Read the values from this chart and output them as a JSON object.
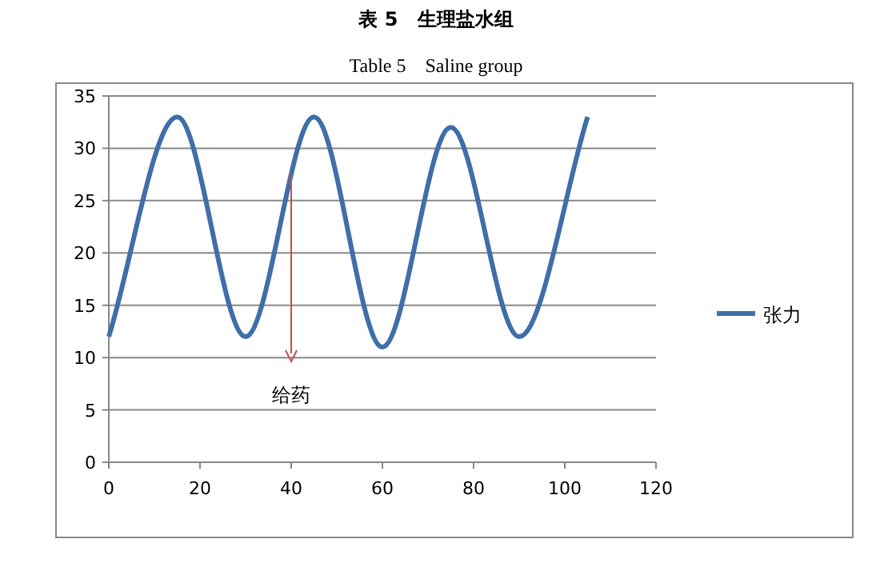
{
  "chart_data": {
    "type": "line",
    "title": "表 5　生理盐水组",
    "subtitle": "Table 5　Saline group",
    "x": [
      0,
      15,
      30,
      45,
      60,
      75,
      90,
      105
    ],
    "series": [
      {
        "name": "张力",
        "color": "#3f6fa8",
        "values": [
          12,
          33,
          12,
          33,
          11,
          32,
          12,
          33
        ]
      }
    ],
    "xlim": [
      0,
      120
    ],
    "xticks": [
      0,
      20,
      40,
      60,
      80,
      100,
      120
    ],
    "ylim": [
      0,
      35
    ],
    "yticks": [
      0,
      5,
      10,
      15,
      20,
      25,
      30,
      35
    ],
    "grid": "y",
    "legend": "right",
    "marker": "none",
    "line_style": "solid",
    "annotations": [
      "给药"
    ]
  }
}
